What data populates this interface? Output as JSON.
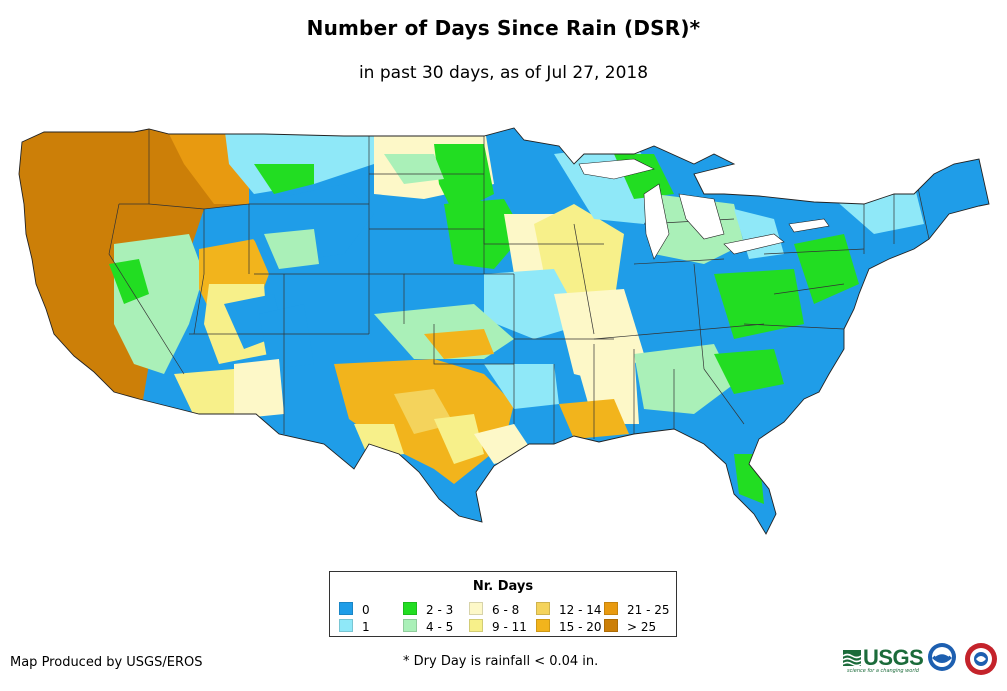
{
  "title": "Number of Days Since Rain (DSR)*",
  "subtitle": "in past 30 days, as of Jul 27, 2018",
  "legend": {
    "title": "Nr. Days",
    "items": [
      {
        "label": "0",
        "color": "#1f9de8"
      },
      {
        "label": "1",
        "color": "#8fe8f8"
      },
      {
        "label": "2 - 3",
        "color": "#22dd22"
      },
      {
        "label": "4 - 5",
        "color": "#aaf0b8"
      },
      {
        "label": "6 - 8",
        "color": "#fdf8c8"
      },
      {
        "label": "9 - 11",
        "color": "#f7f08a"
      },
      {
        "label": "12 - 14",
        "color": "#f4d35c"
      },
      {
        "label": "15 - 20",
        "color": "#f2b41c"
      },
      {
        "label": "21 - 25",
        "color": "#e89a10"
      },
      {
        "label": "> 25",
        "color": "#cc7f08"
      }
    ]
  },
  "footer": {
    "credit": "Map Produced by USGS/EROS",
    "footnote": "* Dry Day is rainfall < 0.04 in."
  },
  "logos": {
    "usgs": "USGS",
    "usgs_tagline": "science for a changing world",
    "noaa_icon": "noaa-logo",
    "nws_icon": "nws-logo"
  }
}
